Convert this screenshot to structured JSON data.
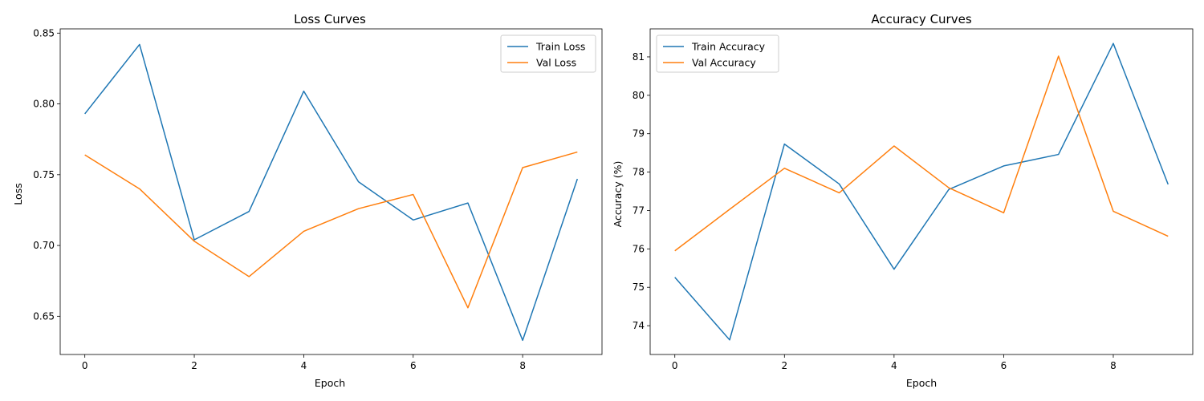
{
  "colors": {
    "train": "#1f77b4",
    "val": "#ff7f0e"
  },
  "chart_data": [
    {
      "type": "line",
      "title": "Loss Curves",
      "xlabel": "Epoch",
      "ylabel": "Loss",
      "xlim": [
        -0.45,
        9.45
      ],
      "ylim": [
        0.623,
        0.853
      ],
      "xticks": [
        0,
        2,
        4,
        6,
        8
      ],
      "yticks": [
        0.65,
        0.7,
        0.75,
        0.8,
        0.85
      ],
      "ytick_labels": [
        "0.65",
        "0.70",
        "0.75",
        "0.80",
        "0.85"
      ],
      "grid": false,
      "legend_position": "top-right",
      "x": [
        0,
        1,
        2,
        3,
        4,
        5,
        6,
        7,
        8,
        9
      ],
      "series": [
        {
          "name": "Train Loss",
          "color": "#1f77b4",
          "values": [
            0.793,
            0.842,
            0.704,
            0.724,
            0.809,
            0.745,
            0.718,
            0.73,
            0.633,
            0.747
          ]
        },
        {
          "name": "Val Loss",
          "color": "#ff7f0e",
          "values": [
            0.764,
            0.74,
            0.703,
            0.678,
            0.71,
            0.726,
            0.736,
            0.656,
            0.755,
            0.766
          ]
        }
      ]
    },
    {
      "type": "line",
      "title": "Accuracy Curves",
      "xlabel": "Epoch",
      "ylabel": "Accuracy (%)",
      "xlim": [
        -0.45,
        9.45
      ],
      "ylim": [
        73.25,
        81.73
      ],
      "xticks": [
        0,
        2,
        4,
        6,
        8
      ],
      "yticks": [
        74,
        75,
        76,
        77,
        78,
        79,
        80,
        81
      ],
      "ytick_labels": [
        "74",
        "75",
        "76",
        "77",
        "78",
        "79",
        "80",
        "81"
      ],
      "grid": false,
      "legend_position": "top-left",
      "x": [
        0,
        1,
        2,
        3,
        4,
        5,
        6,
        7,
        8,
        9
      ],
      "series": [
        {
          "name": "Train Accuracy",
          "color": "#1f77b4",
          "values": [
            75.26,
            73.63,
            78.73,
            77.69,
            75.47,
            77.55,
            78.16,
            78.46,
            81.35,
            77.68
          ]
        },
        {
          "name": "Val Accuracy",
          "color": "#ff7f0e",
          "values": [
            75.95,
            77.03,
            78.1,
            77.46,
            78.68,
            77.59,
            76.94,
            81.02,
            76.98,
            76.33
          ]
        }
      ]
    }
  ]
}
